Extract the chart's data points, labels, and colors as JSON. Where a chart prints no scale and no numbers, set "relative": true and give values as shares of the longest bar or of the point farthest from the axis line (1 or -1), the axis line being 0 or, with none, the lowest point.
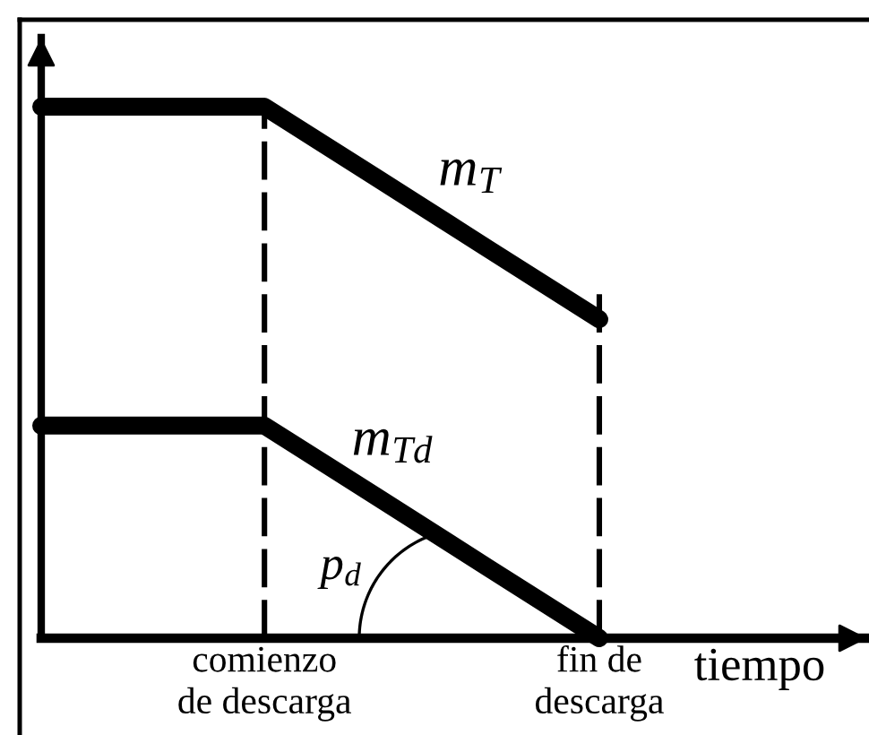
{
  "chart_data": {
    "type": "line",
    "relative": true,
    "categories": [
      null,
      null,
      "comienzo\nde descarga",
      null,
      null,
      "fin de\ndescarga"
    ],
    "xlabel": "tiempo",
    "series": [
      {
        "name": "m$_{T}$",
        "color": "#000000",
        "values": [
          1,
          1,
          1,
          0.867,
          0.733,
          0.6
        ]
      },
      {
        "name": "m$_{Td}$",
        "color": "#000000",
        "values": [
          0.4,
          0.4,
          0.4,
          0.267,
          0.133,
          0
        ]
      }
    ],
    "ref_lines": [
      {
        "axis": "x",
        "value": "comienzo\nde descarga",
        "line_style": "dashed",
        "color": "#000000"
      },
      {
        "axis": "x",
        "value": "fin de\ndescarga",
        "line_style": "dashed",
        "color": "#000000"
      }
    ],
    "annotations": [
      "p$_{d}$"
    ]
  }
}
